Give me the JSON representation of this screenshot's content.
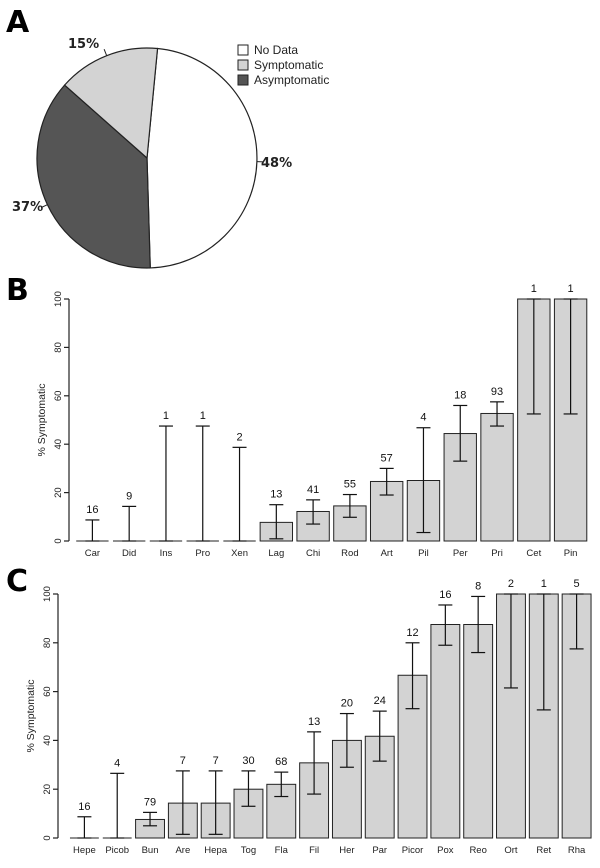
{
  "panels": {
    "a": "A",
    "b": "B",
    "c": "C"
  },
  "chart_data": [
    {
      "type": "pie",
      "slices": [
        {
          "label": "No Data",
          "value": 48,
          "display": "48%",
          "color": "#ffffff"
        },
        {
          "label": "Symptomatic",
          "value": 15,
          "display": "15%",
          "color": "#d3d3d3"
        },
        {
          "label": "Asymptomatic",
          "value": 37,
          "display": "37%",
          "color": "#555555"
        }
      ],
      "legend_placement": "top-right"
    },
    {
      "type": "bar",
      "ylabel": "% Symptomatic",
      "ylim": [
        0,
        100
      ],
      "yticks": [
        0,
        20,
        40,
        60,
        80,
        100
      ],
      "categories": [
        "Car",
        "Did",
        "Ins",
        "Pro",
        "Xen",
        "Lag",
        "Chi",
        "Rod",
        "Art",
        "Pil",
        "Per",
        "Pri",
        "Cet",
        "Pin"
      ],
      "values": [
        0,
        0,
        0,
        0,
        0,
        7.7,
        12.2,
        14.5,
        24.6,
        25,
        44.4,
        52.7,
        100,
        100
      ],
      "err_low": [
        0,
        0,
        0,
        0,
        0,
        0.9,
        7,
        9.8,
        19,
        3.5,
        33,
        47.5,
        52.5,
        52.5
      ],
      "err_high": [
        8.7,
        14.3,
        47.5,
        47.5,
        38.7,
        15,
        17,
        19.2,
        30,
        46.8,
        56,
        57.5,
        100,
        100
      ],
      "n": [
        "16",
        "9",
        "1",
        "1",
        "2",
        "13",
        "41",
        "55",
        "57",
        "4",
        "18",
        "93",
        "1",
        "1"
      ],
      "grid": false
    },
    {
      "type": "bar",
      "ylabel": "% Symptomatic",
      "ylim": [
        0,
        100
      ],
      "yticks": [
        0,
        20,
        40,
        60,
        80,
        100
      ],
      "categories": [
        "Hepe",
        "Picob",
        "Bun",
        "Are",
        "Hepa",
        "Tog",
        "Fla",
        "Fil",
        "Her",
        "Par",
        "Picor",
        "Pox",
        "Reo",
        "Ort",
        "Ret",
        "Rha"
      ],
      "values": [
        0,
        0,
        7.6,
        14.3,
        14.3,
        20,
        22,
        30.8,
        40,
        41.7,
        66.7,
        87.5,
        87.5,
        100,
        100,
        100
      ],
      "err_low": [
        0,
        0,
        5,
        1.5,
        1.5,
        13,
        17,
        18,
        29,
        31.5,
        53,
        79,
        76,
        61.5,
        52.5,
        77.5
      ],
      "err_high": [
        8.7,
        26.5,
        10.5,
        27.5,
        27.5,
        27.5,
        27,
        43.5,
        51,
        52,
        80,
        95.5,
        99,
        100,
        100,
        100
      ],
      "n": [
        "16",
        "4",
        "79",
        "7",
        "7",
        "30",
        "68",
        "13",
        "20",
        "24",
        "12",
        "16",
        "8",
        "2",
        "1",
        "5"
      ],
      "grid": false
    }
  ]
}
